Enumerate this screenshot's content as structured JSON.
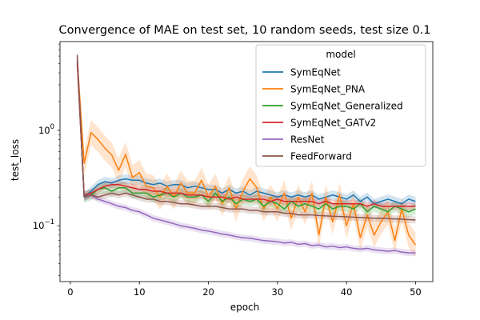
{
  "chart_data": {
    "type": "line",
    "title": "Convergence of MAE on test set, 10 random seeds, test size 0.1",
    "xlabel": "epoch",
    "ylabel": "test_loss",
    "yscale": "log",
    "xlim": [
      -1.5,
      52.5
    ],
    "ylim": [
      0.026,
      8.5
    ],
    "x_ticks": [
      0,
      10,
      20,
      30,
      40,
      50
    ],
    "y_ticks": [
      {
        "value": 0.1,
        "label": "10^-1"
      },
      {
        "value": 1,
        "label": "10^0"
      }
    ],
    "grid": false,
    "legend": {
      "title": "model",
      "position": "top-right"
    },
    "series": [
      {
        "name": "SymEqNet",
        "color": "#1f77b4",
        "band_fraction": 0.12,
        "x": [
          1,
          2,
          3,
          4,
          5,
          6,
          7,
          8,
          9,
          10,
          11,
          12,
          13,
          14,
          15,
          16,
          17,
          18,
          19,
          20,
          21,
          22,
          23,
          24,
          25,
          26,
          27,
          28,
          29,
          30,
          31,
          32,
          33,
          34,
          35,
          36,
          37,
          38,
          39,
          40,
          41,
          42,
          43,
          44,
          45,
          46,
          47,
          48,
          49,
          50
        ],
        "values": [
          5.8,
          0.2,
          0.23,
          0.27,
          0.29,
          0.28,
          0.3,
          0.31,
          0.3,
          0.3,
          0.28,
          0.27,
          0.28,
          0.26,
          0.27,
          0.27,
          0.25,
          0.26,
          0.25,
          0.24,
          0.24,
          0.22,
          0.24,
          0.22,
          0.23,
          0.21,
          0.23,
          0.22,
          0.21,
          0.2,
          0.21,
          0.2,
          0.21,
          0.2,
          0.21,
          0.19,
          0.2,
          0.21,
          0.2,
          0.19,
          0.21,
          0.18,
          0.2,
          0.17,
          0.18,
          0.19,
          0.18,
          0.17,
          0.19,
          0.18
        ]
      },
      {
        "name": "SymEqNet_PNA",
        "color": "#ff7f0e",
        "band_fraction": 0.35,
        "x": [
          1,
          2,
          3,
          4,
          5,
          6,
          7,
          8,
          9,
          10,
          11,
          12,
          13,
          14,
          15,
          16,
          17,
          18,
          19,
          20,
          21,
          22,
          23,
          24,
          25,
          26,
          27,
          28,
          29,
          30,
          31,
          32,
          33,
          34,
          35,
          36,
          37,
          38,
          39,
          40,
          41,
          42,
          43,
          44,
          45,
          46,
          47,
          48,
          49,
          50
        ],
        "values": [
          5.5,
          0.45,
          0.95,
          0.8,
          0.65,
          0.55,
          0.38,
          0.56,
          0.32,
          0.36,
          0.26,
          0.25,
          0.2,
          0.26,
          0.2,
          0.28,
          0.22,
          0.22,
          0.3,
          0.2,
          0.26,
          0.17,
          0.25,
          0.15,
          0.23,
          0.31,
          0.25,
          0.15,
          0.2,
          0.15,
          0.22,
          0.12,
          0.2,
          0.14,
          0.22,
          0.08,
          0.2,
          0.11,
          0.21,
          0.1,
          0.17,
          0.075,
          0.13,
          0.08,
          0.11,
          0.14,
          0.07,
          0.15,
          0.08,
          0.063
        ]
      },
      {
        "name": "SymEqNet_Generalized",
        "color": "#2ca02c",
        "band_fraction": 0.14,
        "x": [
          1,
          2,
          3,
          4,
          5,
          6,
          7,
          8,
          9,
          10,
          11,
          12,
          13,
          14,
          15,
          16,
          17,
          18,
          19,
          20,
          21,
          22,
          23,
          24,
          25,
          26,
          27,
          28,
          29,
          30,
          31,
          32,
          33,
          34,
          35,
          36,
          37,
          38,
          39,
          40,
          41,
          42,
          43,
          44,
          45,
          46,
          47,
          48,
          49,
          50
        ],
        "values": [
          5.2,
          0.2,
          0.21,
          0.24,
          0.25,
          0.23,
          0.25,
          0.25,
          0.22,
          0.22,
          0.22,
          0.2,
          0.21,
          0.22,
          0.2,
          0.22,
          0.2,
          0.2,
          0.21,
          0.18,
          0.22,
          0.18,
          0.2,
          0.17,
          0.19,
          0.18,
          0.19,
          0.16,
          0.18,
          0.17,
          0.15,
          0.18,
          0.16,
          0.17,
          0.16,
          0.15,
          0.17,
          0.15,
          0.16,
          0.16,
          0.15,
          0.17,
          0.14,
          0.16,
          0.15,
          0.14,
          0.16,
          0.15,
          0.14,
          0.15
        ]
      },
      {
        "name": "SymEqNet_GATv2",
        "color": "#d62728",
        "band_fraction": 0.1,
        "x": [
          1,
          2,
          3,
          4,
          5,
          6,
          7,
          8,
          9,
          10,
          11,
          12,
          13,
          14,
          15,
          16,
          17,
          18,
          19,
          20,
          21,
          22,
          23,
          24,
          25,
          26,
          27,
          28,
          29,
          30,
          31,
          32,
          33,
          34,
          35,
          36,
          37,
          38,
          39,
          40,
          41,
          42,
          43,
          44,
          45,
          46,
          47,
          48,
          49,
          50
        ],
        "values": [
          5.0,
          0.21,
          0.22,
          0.24,
          0.26,
          0.27,
          0.27,
          0.26,
          0.25,
          0.24,
          0.24,
          0.23,
          0.23,
          0.22,
          0.22,
          0.22,
          0.21,
          0.21,
          0.21,
          0.2,
          0.2,
          0.2,
          0.19,
          0.2,
          0.19,
          0.19,
          0.19,
          0.19,
          0.18,
          0.19,
          0.18,
          0.18,
          0.18,
          0.18,
          0.18,
          0.17,
          0.18,
          0.17,
          0.17,
          0.17,
          0.17,
          0.17,
          0.16,
          0.17,
          0.16,
          0.16,
          0.16,
          0.16,
          0.16,
          0.16
        ]
      },
      {
        "name": "ResNet",
        "color": "#9467bd",
        "band_fraction": 0.08,
        "x": [
          1,
          2,
          3,
          4,
          5,
          6,
          7,
          8,
          9,
          10,
          11,
          12,
          13,
          14,
          15,
          16,
          17,
          18,
          19,
          20,
          21,
          22,
          23,
          24,
          25,
          26,
          27,
          28,
          29,
          30,
          31,
          32,
          33,
          34,
          35,
          36,
          37,
          38,
          39,
          40,
          41,
          42,
          43,
          44,
          45,
          46,
          47,
          48,
          49,
          50
        ],
        "values": [
          6.0,
          0.2,
          0.21,
          0.19,
          0.18,
          0.17,
          0.16,
          0.155,
          0.145,
          0.14,
          0.13,
          0.12,
          0.115,
          0.11,
          0.105,
          0.1,
          0.097,
          0.094,
          0.09,
          0.088,
          0.085,
          0.082,
          0.08,
          0.077,
          0.075,
          0.074,
          0.072,
          0.07,
          0.069,
          0.068,
          0.066,
          0.067,
          0.064,
          0.065,
          0.062,
          0.063,
          0.06,
          0.061,
          0.059,
          0.06,
          0.058,
          0.057,
          0.058,
          0.056,
          0.055,
          0.054,
          0.055,
          0.053,
          0.052,
          0.052
        ]
      },
      {
        "name": "FeedForward",
        "color": "#8c564b",
        "band_fraction": 0.09,
        "x": [
          1,
          2,
          3,
          4,
          5,
          6,
          7,
          8,
          9,
          10,
          11,
          12,
          13,
          14,
          15,
          16,
          17,
          18,
          19,
          20,
          21,
          22,
          23,
          24,
          25,
          26,
          27,
          28,
          29,
          30,
          31,
          32,
          33,
          34,
          35,
          36,
          37,
          38,
          39,
          40,
          41,
          42,
          43,
          44,
          45,
          46,
          47,
          48,
          49,
          50
        ],
        "values": [
          6.2,
          0.2,
          0.21,
          0.2,
          0.21,
          0.22,
          0.21,
          0.22,
          0.21,
          0.2,
          0.19,
          0.19,
          0.18,
          0.18,
          0.175,
          0.17,
          0.17,
          0.165,
          0.16,
          0.16,
          0.16,
          0.155,
          0.15,
          0.15,
          0.15,
          0.145,
          0.145,
          0.14,
          0.14,
          0.14,
          0.135,
          0.135,
          0.13,
          0.13,
          0.13,
          0.128,
          0.127,
          0.126,
          0.125,
          0.124,
          0.123,
          0.122,
          0.121,
          0.12,
          0.12,
          0.119,
          0.118,
          0.117,
          0.116,
          0.115
        ]
      }
    ]
  }
}
